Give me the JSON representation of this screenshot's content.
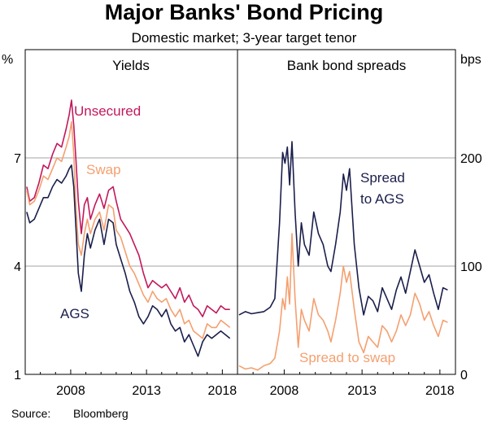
{
  "chart_data": {
    "type": "line",
    "title": "Major Banks' Bond Pricing",
    "subtitle": "Domestic market; 3-year target tenor",
    "source_label": "Source:",
    "source_value": "Bloomberg",
    "x_range": [
      2005,
      2019
    ],
    "x_ticks": [
      2008,
      2013,
      2018
    ],
    "x_tick_labels": [
      "2008",
      "2013",
      "2018"
    ],
    "colors": {
      "unsecured": "#c2185b",
      "swap": "#f4a070",
      "ags": "#1b1f4b",
      "grid": "#a6a6a6"
    },
    "panels": [
      {
        "title": "Yields",
        "unit": "%",
        "ylim": [
          1,
          10
        ],
        "y_ticks": [
          1,
          4,
          7
        ],
        "y_tick_labels": [
          "1",
          "4",
          "7"
        ],
        "series": [
          {
            "name": "Unsecured",
            "color": "#c2185b",
            "x": [
              2005.1,
              2005.3,
              2005.6,
              2005.9,
              2006.2,
              2006.5,
              2006.8,
              2007.1,
              2007.4,
              2007.7,
              2007.9,
              2008.05,
              2008.2,
              2008.35,
              2008.5,
              2008.7,
              2008.9,
              2009.1,
              2009.3,
              2009.6,
              2009.9,
              2010.2,
              2010.5,
              2010.8,
              2011.0,
              2011.3,
              2011.6,
              2011.9,
              2012.2,
              2012.5,
              2012.8,
              2013.1,
              2013.4,
              2013.7,
              2014.0,
              2014.3,
              2014.6,
              2014.9,
              2015.2,
              2015.5,
              2015.8,
              2016.1,
              2016.4,
              2016.7,
              2017.0,
              2017.3,
              2017.6,
              2017.9,
              2018.2,
              2018.5
            ],
            "values": [
              6.2,
              5.8,
              5.9,
              6.3,
              6.8,
              6.7,
              7.1,
              7.4,
              7.3,
              7.8,
              8.2,
              8.6,
              7.9,
              6.9,
              5.8,
              4.9,
              5.7,
              5.9,
              5.3,
              5.7,
              6.0,
              5.6,
              6.1,
              6.2,
              5.8,
              5.3,
              5.1,
              4.9,
              4.6,
              4.3,
              3.8,
              3.4,
              3.6,
              3.5,
              3.4,
              3.5,
              3.3,
              3.1,
              3.4,
              3.0,
              3.2,
              2.9,
              2.8,
              2.6,
              2.9,
              2.8,
              2.7,
              2.9,
              2.8,
              2.8
            ]
          },
          {
            "name": "Swap",
            "color": "#f4a070",
            "x": [
              2005.1,
              2005.3,
              2005.6,
              2005.9,
              2006.2,
              2006.5,
              2006.8,
              2007.1,
              2007.4,
              2007.7,
              2007.9,
              2008.05,
              2008.2,
              2008.35,
              2008.5,
              2008.7,
              2008.9,
              2009.1,
              2009.3,
              2009.6,
              2009.9,
              2010.2,
              2010.5,
              2010.8,
              2011.0,
              2011.3,
              2011.6,
              2011.9,
              2012.2,
              2012.5,
              2012.8,
              2013.1,
              2013.4,
              2013.7,
              2014.0,
              2014.3,
              2014.6,
              2014.9,
              2015.2,
              2015.5,
              2015.8,
              2016.1,
              2016.4,
              2016.7,
              2017.0,
              2017.3,
              2017.6,
              2017.9,
              2018.2,
              2018.5
            ],
            "values": [
              6.1,
              5.7,
              5.8,
              6.1,
              6.5,
              6.4,
              6.7,
              7.0,
              6.9,
              7.3,
              7.6,
              8.0,
              7.1,
              5.6,
              4.6,
              4.3,
              4.9,
              5.3,
              4.9,
              5.3,
              5.5,
              5.0,
              5.7,
              5.6,
              5.0,
              4.8,
              4.4,
              4.0,
              3.8,
              3.5,
              3.2,
              3.0,
              3.3,
              3.1,
              3.0,
              3.1,
              2.8,
              2.6,
              2.8,
              2.4,
              2.5,
              2.2,
              2.1,
              2.0,
              2.4,
              2.3,
              2.3,
              2.5,
              2.4,
              2.3
            ]
          },
          {
            "name": "AGS",
            "color": "#1b1f4b",
            "x": [
              2005.1,
              2005.3,
              2005.6,
              2005.9,
              2006.2,
              2006.5,
              2006.8,
              2007.1,
              2007.4,
              2007.7,
              2007.9,
              2008.05,
              2008.2,
              2008.35,
              2008.5,
              2008.7,
              2008.9,
              2009.1,
              2009.3,
              2009.6,
              2009.9,
              2010.2,
              2010.5,
              2010.8,
              2011.0,
              2011.3,
              2011.6,
              2011.9,
              2012.2,
              2012.5,
              2012.8,
              2013.1,
              2013.4,
              2013.7,
              2014.0,
              2014.3,
              2014.6,
              2014.9,
              2015.2,
              2015.5,
              2015.8,
              2016.1,
              2016.4,
              2016.7,
              2017.0,
              2017.3,
              2017.6,
              2017.9,
              2018.2,
              2018.5
            ],
            "values": [
              5.5,
              5.2,
              5.3,
              5.6,
              5.9,
              5.9,
              6.2,
              6.4,
              6.3,
              6.5,
              6.7,
              6.8,
              6.2,
              5.0,
              3.8,
              3.3,
              4.3,
              4.9,
              4.5,
              5.0,
              5.3,
              4.6,
              5.3,
              5.2,
              4.6,
              4.2,
              3.8,
              3.3,
              3.0,
              2.6,
              2.4,
              2.6,
              2.9,
              2.8,
              2.6,
              2.8,
              2.4,
              2.2,
              2.3,
              1.9,
              2.1,
              1.8,
              1.5,
              1.9,
              2.1,
              2.0,
              2.1,
              2.2,
              2.1,
              2.0
            ]
          }
        ],
        "labels": [
          {
            "text": "Unsecured",
            "series": "Unsecured"
          },
          {
            "text": "Swap",
            "series": "Swap"
          },
          {
            "text": "AGS",
            "series": "AGS"
          }
        ]
      },
      {
        "title": "Bank bond spreads",
        "unit": "bps",
        "ylim": [
          0,
          300
        ],
        "y_ticks": [
          0,
          100,
          200
        ],
        "y_tick_labels": [
          "0",
          "100",
          "200"
        ],
        "series": [
          {
            "name": "Spread to AGS",
            "color": "#1b1f4b",
            "x": [
              2005.1,
              2005.5,
              2005.9,
              2006.3,
              2006.7,
              2007.1,
              2007.4,
              2007.7,
              2007.9,
              2008.05,
              2008.2,
              2008.35,
              2008.5,
              2008.7,
              2008.9,
              2009.1,
              2009.3,
              2009.6,
              2009.9,
              2010.2,
              2010.5,
              2010.8,
              2011.0,
              2011.3,
              2011.6,
              2011.8,
              2012.0,
              2012.2,
              2012.5,
              2012.8,
              2013.1,
              2013.4,
              2013.7,
              2014.0,
              2014.3,
              2014.6,
              2014.9,
              2015.2,
              2015.5,
              2015.8,
              2016.1,
              2016.4,
              2016.7,
              2017.0,
              2017.3,
              2017.6,
              2017.9,
              2018.2,
              2018.5
            ],
            "values": [
              55,
              58,
              56,
              57,
              58,
              62,
              70,
              140,
              205,
              195,
              210,
              175,
              215,
              150,
              100,
              140,
              120,
              110,
              150,
              130,
              120,
              100,
              95,
              120,
              150,
              185,
              170,
              190,
              120,
              80,
              55,
              72,
              68,
              58,
              80,
              70,
              60,
              78,
              90,
              75,
              95,
              115,
              100,
              85,
              92,
              75,
              60,
              80,
              78
            ]
          },
          {
            "name": "Spread to swap",
            "color": "#f4a070",
            "x": [
              2005.1,
              2005.5,
              2005.9,
              2006.3,
              2006.7,
              2007.1,
              2007.4,
              2007.7,
              2007.9,
              2008.05,
              2008.2,
              2008.35,
              2008.5,
              2008.7,
              2008.9,
              2009.1,
              2009.3,
              2009.6,
              2009.9,
              2010.2,
              2010.5,
              2010.8,
              2011.0,
              2011.3,
              2011.6,
              2011.8,
              2012.0,
              2012.2,
              2012.5,
              2012.8,
              2013.1,
              2013.4,
              2013.7,
              2014.0,
              2014.3,
              2014.6,
              2014.9,
              2015.2,
              2015.5,
              2015.8,
              2016.1,
              2016.4,
              2016.7,
              2017.0,
              2017.3,
              2017.6,
              2017.9,
              2018.2,
              2018.5
            ],
            "values": [
              8,
              5,
              6,
              4,
              8,
              10,
              15,
              40,
              70,
              60,
              90,
              65,
              130,
              70,
              25,
              60,
              50,
              40,
              70,
              55,
              50,
              40,
              30,
              50,
              75,
              100,
              85,
              95,
              60,
              30,
              20,
              35,
              30,
              25,
              45,
              40,
              30,
              40,
              55,
              45,
              55,
              75,
              65,
              50,
              58,
              45,
              35,
              50,
              48
            ]
          }
        ],
        "labels": [
          {
            "text": "Spread",
            "series": "Spread to AGS"
          },
          {
            "text": "to AGS",
            "series": "Spread to AGS"
          },
          {
            "text": "Spread to swap",
            "series": "Spread to swap"
          }
        ]
      }
    ]
  }
}
